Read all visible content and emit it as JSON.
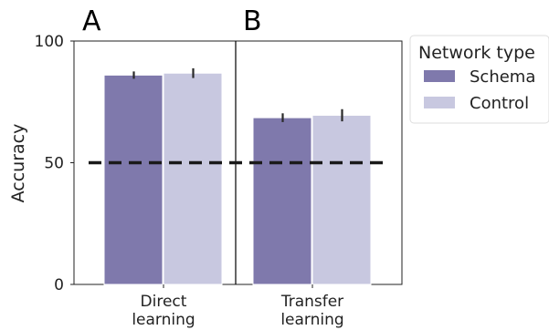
{
  "chart_data": {
    "type": "bar",
    "panel_labels": [
      "A",
      "B"
    ],
    "categories": [
      [
        "Direct",
        "learning"
      ],
      [
        "Transfer",
        "learning"
      ]
    ],
    "series": [
      {
        "name": "Schema",
        "color": "#7f79ac",
        "values": [
          86,
          68.5
        ],
        "error": [
          1.5,
          1.8
        ]
      },
      {
        "name": "Control",
        "color": "#c8c8e0",
        "values": [
          86.8,
          69.5
        ],
        "error": [
          2,
          2.5
        ]
      }
    ],
    "ylabel": "Accuracy",
    "ylim": [
      0,
      100
    ],
    "yticks": [
      0,
      50,
      100
    ],
    "chance_level": 50,
    "grid": false,
    "legend": {
      "title": "Network type",
      "placement": "outside-right-top"
    }
  }
}
